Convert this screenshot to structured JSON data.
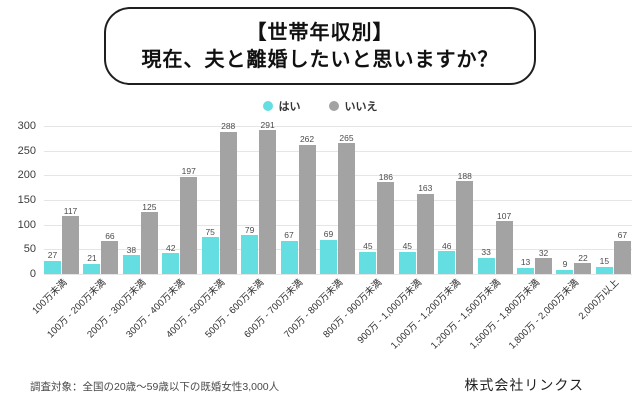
{
  "header": {
    "title_line1": "【世帯年収別】",
    "title_line2": "現在、夫と離婚したいと思いますか？"
  },
  "chart_data": {
    "type": "bar",
    "title": "【世帯年収別】現在、夫と離婚したいと思いますか？",
    "categories": [
      "100万未満",
      "100万 - 200万未満",
      "200万 - 300万未満",
      "300万 - 400万未満",
      "400万 - 500万未満",
      "500万 - 600万未満",
      "600万 - 700万未満",
      "700万 - 800万未満",
      "800万 - 900万未満",
      "900万 - 1,000万未満",
      "1,000万 - 1,200万未満",
      "1,200万 - 1,500万未満",
      "1,500万 - 1,800万未満",
      "1,800万 - 2,000万未満",
      "2,000万以上"
    ],
    "series": [
      {
        "name": "はい",
        "color": "#64dee0",
        "values": [
          27,
          21,
          38,
          42,
          75,
          79,
          67,
          69,
          45,
          45,
          46,
          33,
          13,
          9,
          15
        ]
      },
      {
        "name": "いいえ",
        "color": "#a3a3a3",
        "values": [
          117,
          66,
          125,
          197,
          288,
          291,
          262,
          265,
          186,
          163,
          188,
          107,
          32,
          22,
          67
        ]
      }
    ],
    "xlabel": "",
    "ylabel": "",
    "ylim": [
      0,
      300
    ],
    "ytick_step": 50,
    "grid": true,
    "legend_position": "top",
    "x_tick_rotation": 45
  },
  "footer": {
    "note": "調査対象：全国の20歳〜59歳以下の既婚女性3,000人",
    "company": "株式会社リンクス"
  },
  "colors": {
    "yes_bar": "#64dee0",
    "no_bar": "#a3a3a3",
    "gridline": "#e5e5e5",
    "title_border": "#1f1f1f",
    "background": "#ffffff"
  }
}
